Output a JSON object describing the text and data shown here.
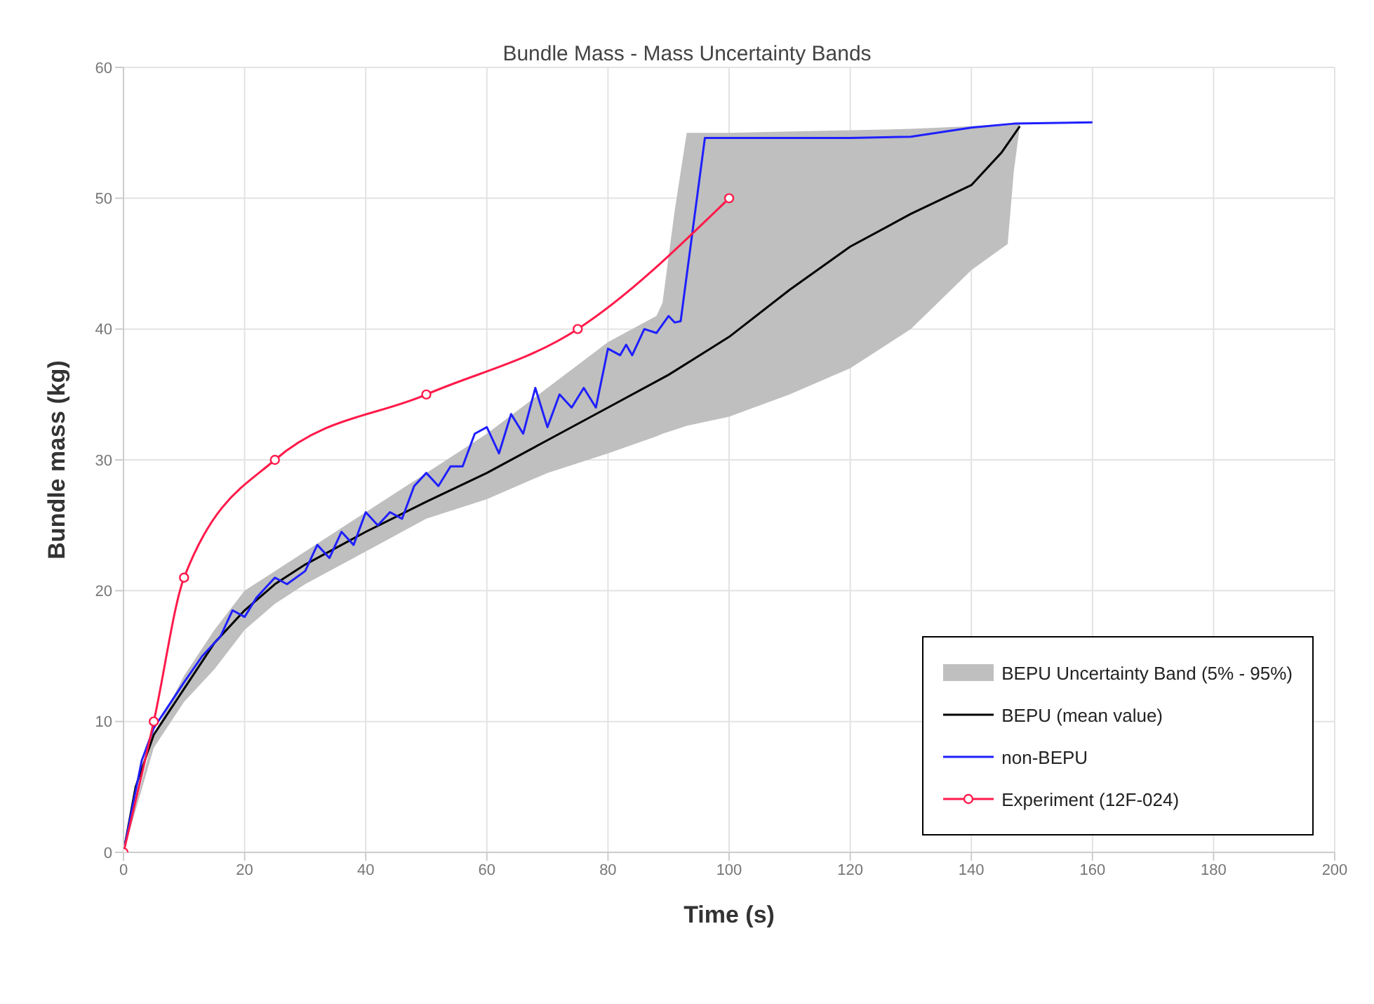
{
  "chart_data": {
    "type": "line",
    "title": "Bundle Mass - Mass Uncertainty Bands",
    "xlabel": "Time (s)",
    "ylabel": "Bundle mass (kg)",
    "xlim": [
      0,
      200
    ],
    "xticks": [
      0,
      20,
      40,
      60,
      80,
      100,
      120,
      140,
      160,
      180,
      200
    ],
    "ylim": [
      0,
      60
    ],
    "yticks": [
      0,
      10,
      20,
      30,
      40,
      50,
      60
    ],
    "grid": true,
    "legend": "bottom right",
    "series": [
      {
        "name": "BEPU Uncertainty Band (5% - 95%)",
        "type": "area",
        "color": "#bfbfbf",
        "x": [
          0,
          5,
          10,
          15,
          20,
          25,
          30,
          40,
          50,
          60,
          70,
          80,
          88,
          89,
          91,
          93,
          100,
          110,
          120,
          130,
          140,
          146,
          147,
          148
        ],
        "values": [
          null,
          null,
          null,
          null,
          null,
          null,
          null,
          null,
          null,
          null,
          null,
          null,
          null,
          null,
          null,
          null,
          null,
          null,
          null,
          null,
          null,
          null,
          null,
          null
        ],
        "lower": [
          0,
          8,
          11.5,
          14,
          17,
          19,
          20.5,
          23,
          25.5,
          27,
          29,
          30.5,
          31.8,
          32,
          32.3,
          32.6,
          33.3,
          35,
          37,
          40,
          44.5,
          46.5,
          52,
          55.5
        ],
        "upper": [
          0,
          9,
          13.5,
          17,
          20,
          21.5,
          23,
          26,
          29,
          32,
          35.5,
          39,
          41,
          42,
          49,
          55,
          55,
          55.1,
          55.2,
          55.3,
          55.5,
          55.7,
          55.7,
          55.8
        ]
      },
      {
        "name": "BEPU (mean value)",
        "color": "#000000",
        "marker": "none",
        "x": [
          0,
          2,
          5,
          10,
          15,
          20,
          25,
          30,
          40,
          50,
          60,
          70,
          80,
          90,
          100,
          110,
          120,
          130,
          140,
          145,
          148
        ],
        "values": [
          0,
          5,
          9,
          12.5,
          16,
          18.5,
          20.5,
          22,
          24.5,
          26.8,
          29,
          31.5,
          34,
          36.5,
          39.4,
          43,
          46.3,
          48.8,
          51,
          53.5,
          55.5
        ]
      },
      {
        "name": "non-BEPU",
        "color": "#1f1fff",
        "marker": "none",
        "x": [
          0,
          3,
          5,
          10,
          13,
          16,
          18,
          20,
          22,
          25,
          27,
          30,
          32,
          34,
          36,
          38,
          40,
          42,
          44,
          46,
          48,
          50,
          52,
          54,
          56,
          58,
          60,
          62,
          64,
          66,
          68,
          70,
          72,
          74,
          76,
          78,
          80,
          82,
          83,
          84,
          86,
          88,
          90,
          91,
          92,
          96,
          120,
          130,
          140,
          147,
          160
        ],
        "values": [
          0,
          7,
          9.5,
          13,
          15,
          16.5,
          18.5,
          18,
          19.5,
          21,
          20.5,
          21.5,
          23.5,
          22.5,
          24.5,
          23.5,
          26,
          25,
          26,
          25.5,
          28,
          29,
          28,
          29.5,
          29.5,
          32,
          32.5,
          30.5,
          33.5,
          32,
          35.5,
          32.5,
          35,
          34,
          35.5,
          34,
          38.5,
          38,
          38.8,
          38,
          40,
          39.7,
          41,
          40.5,
          40.6,
          54.6,
          54.6,
          54.7,
          55.4,
          55.7,
          55.8
        ]
      },
      {
        "name": "Experiment (12F-024)",
        "color": "#ff1a4a",
        "marker": "circle",
        "x": [
          0,
          5,
          10,
          25,
          50,
          75,
          100
        ],
        "values": [
          0,
          10,
          21,
          30,
          35,
          40,
          50
        ]
      }
    ]
  }
}
